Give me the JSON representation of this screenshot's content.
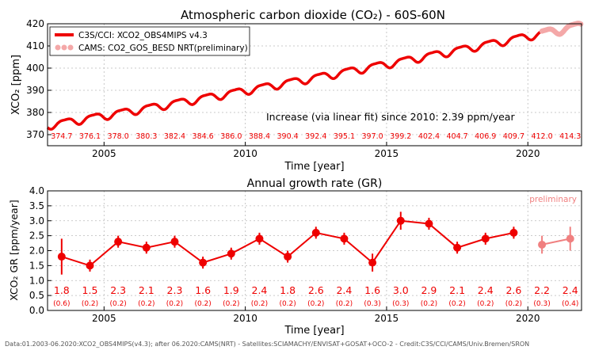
{
  "chart_data": [
    {
      "type": "line",
      "title": "Atmospheric carbon dioxide (CO₂) - 60S-60N",
      "xlabel": "Time [year]",
      "ylabel": "XCO₂ [ppm]",
      "xlim": [
        2003.0,
        2021.9
      ],
      "ylim": [
        365,
        420
      ],
      "x_ticks": [
        2005,
        2010,
        2015,
        2020
      ],
      "y_ticks": [
        370,
        380,
        390,
        400,
        410,
        420
      ],
      "grid": true,
      "legend_position": "top-left",
      "annotation": "Increase (via linear fit) since 2010: 2.39 ppm/year",
      "series": [
        {
          "name": "C3S/CCI: XCO2_OBS4MIPS v4.3",
          "color": "#ee0000",
          "x_start": 2003.0,
          "x_end": 2020.45,
          "trend_start": 374.2,
          "trend_slope": 2.16,
          "seasonal_amplitude": 1.6
        },
        {
          "name": "CAMS: CO2_GOS_BESD NRT(preliminary)",
          "color": "#f4a8a8",
          "x_start": 2020.5,
          "x_end": 2021.9,
          "trend_start": 374.2,
          "trend_slope": 2.16,
          "seasonal_amplitude": 1.6
        }
      ],
      "annual_means": {
        "years": [
          2003,
          2004,
          2005,
          2006,
          2007,
          2008,
          2009,
          2010,
          2011,
          2012,
          2013,
          2014,
          2015,
          2016,
          2017,
          2018,
          2019,
          2020,
          2021
        ],
        "labels": [
          "374.7",
          "376.1",
          "378.0",
          "380.3",
          "382.4",
          "384.6",
          "386.0",
          "388.4",
          "390.4",
          "392.4",
          "395.1",
          "397.0",
          "399.2",
          "402.4",
          "404.7",
          "406.9",
          "409.7",
          "412.0",
          "414.3"
        ]
      }
    },
    {
      "type": "scatter",
      "title": "Annual growth rate (GR)",
      "xlabel": "Time [year]",
      "ylabel": "XCO₂ GR [ppm/year]",
      "xlim": [
        2003.0,
        2021.9
      ],
      "ylim": [
        0.0,
        4.0
      ],
      "x_ticks": [
        2005,
        2010,
        2015,
        2020
      ],
      "y_ticks": [
        0.0,
        0.5,
        1.0,
        1.5,
        2.0,
        2.5,
        3.0,
        3.5,
        4.0
      ],
      "grid": true,
      "annotation": "preliminary",
      "x": [
        2003.5,
        2004.5,
        2005.5,
        2006.5,
        2007.5,
        2008.5,
        2009.5,
        2010.5,
        2011.5,
        2012.5,
        2013.5,
        2014.5,
        2015.5,
        2016.5,
        2017.5,
        2018.5,
        2019.5,
        2020.5,
        2021.5
      ],
      "values": [
        1.8,
        1.5,
        2.3,
        2.1,
        2.3,
        1.6,
        1.9,
        2.4,
        1.8,
        2.6,
        2.4,
        1.6,
        3.0,
        2.9,
        2.1,
        2.4,
        2.6,
        2.2,
        2.4
      ],
      "errors": [
        0.6,
        0.2,
        0.2,
        0.2,
        0.2,
        0.2,
        0.2,
        0.2,
        0.2,
        0.2,
        0.2,
        0.3,
        0.3,
        0.2,
        0.2,
        0.2,
        0.2,
        0.3,
        0.4
      ],
      "value_labels": [
        "1.8",
        "1.5",
        "2.3",
        "2.1",
        "2.3",
        "1.6",
        "1.9",
        "2.4",
        "1.8",
        "2.6",
        "2.4",
        "1.6",
        "3.0",
        "2.9",
        "2.1",
        "2.4",
        "2.6",
        "2.2",
        "2.4"
      ],
      "error_labels": [
        "(0.6)",
        "(0.2)",
        "(0.2)",
        "(0.2)",
        "(0.2)",
        "(0.2)",
        "(0.2)",
        "(0.2)",
        "(0.2)",
        "(0.2)",
        "(0.2)",
        "(0.3)",
        "(0.3)",
        "(0.2)",
        "(0.2)",
        "(0.2)",
        "(0.2)",
        "(0.3)",
        "(0.4)"
      ],
      "preliminary_count": 2,
      "color": "#ee0000",
      "preliminary_color": "#f08080"
    }
  ],
  "footer": "Data:01.2003-06.2020:XCO2_OBS4MIPS(v4.3); after 06.2020:CAMS(NRT) - Satellites:SCIAMACHY/ENVISAT+GOSAT+OCO-2 - Credit:C3S/CCI/CAMS/Univ.Bremen/SRON"
}
